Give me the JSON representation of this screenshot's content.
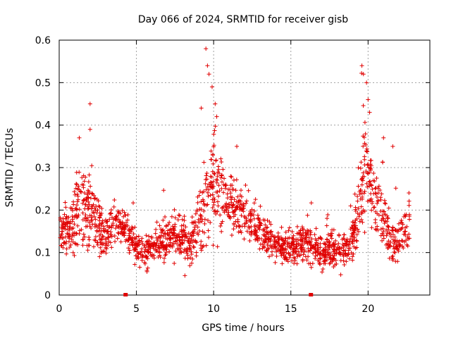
{
  "chart_data": {
    "type": "scatter",
    "title": "Day 066 of 2024, SRMTID for receiver gisb",
    "xlabel": "GPS time / hours",
    "ylabel": "SRMTID / TECUs",
    "xlim": [
      0,
      24
    ],
    "ylim": [
      0,
      0.6
    ],
    "xticks": [
      0,
      5,
      10,
      15,
      20
    ],
    "xtick_labels": [
      "0",
      "5",
      "10",
      "15",
      "20"
    ],
    "yticks": [
      0,
      0.1,
      0.2,
      0.3,
      0.4,
      0.5,
      0.6
    ],
    "ytick_labels": [
      "0",
      "0.1",
      "0.2",
      "0.3",
      "0.4",
      "0.5",
      "0.6"
    ],
    "grid": true,
    "marker": "+",
    "color": "#e00000",
    "note": "Dense scatter of several thousand samples; values listed are a representative approximation of the plotted profile.",
    "envelope": {
      "x": [
        0,
        0.5,
        1,
        1.3,
        1.6,
        2,
        2.3,
        2.7,
        3,
        3.3,
        3.6,
        4,
        4.5,
        5,
        5.5,
        6,
        6.5,
        7,
        7.5,
        8,
        8.5,
        9,
        9.3,
        9.6,
        10,
        10.3,
        10.6,
        11,
        11.5,
        12,
        12.5,
        13,
        13.5,
        14,
        14.5,
        15,
        15.5,
        16,
        16.5,
        17,
        17.5,
        18,
        18.5,
        19,
        19.3,
        19.6,
        19.8,
        20,
        20.3,
        20.6,
        21,
        21.5,
        22,
        22.5,
        22.7
      ],
      "mean": [
        0.14,
        0.15,
        0.17,
        0.22,
        0.19,
        0.2,
        0.18,
        0.16,
        0.14,
        0.15,
        0.17,
        0.16,
        0.15,
        0.11,
        0.1,
        0.11,
        0.12,
        0.13,
        0.14,
        0.13,
        0.12,
        0.16,
        0.19,
        0.24,
        0.26,
        0.24,
        0.22,
        0.21,
        0.2,
        0.19,
        0.17,
        0.15,
        0.13,
        0.12,
        0.11,
        0.11,
        0.12,
        0.12,
        0.11,
        0.1,
        0.11,
        0.11,
        0.1,
        0.12,
        0.18,
        0.27,
        0.3,
        0.3,
        0.24,
        0.19,
        0.18,
        0.13,
        0.13,
        0.15,
        0.18
      ],
      "spread": [
        0.04,
        0.05,
        0.07,
        0.1,
        0.08,
        0.09,
        0.07,
        0.05,
        0.05,
        0.05,
        0.05,
        0.04,
        0.04,
        0.04,
        0.04,
        0.04,
        0.04,
        0.05,
        0.05,
        0.05,
        0.06,
        0.07,
        0.1,
        0.12,
        0.12,
        0.1,
        0.08,
        0.07,
        0.06,
        0.05,
        0.05,
        0.04,
        0.04,
        0.04,
        0.04,
        0.04,
        0.04,
        0.04,
        0.04,
        0.04,
        0.04,
        0.04,
        0.04,
        0.05,
        0.08,
        0.12,
        0.13,
        0.12,
        0.09,
        0.07,
        0.06,
        0.05,
        0.05,
        0.05,
        0.06
      ]
    },
    "peaks": [
      {
        "x": 1.3,
        "y": 0.37
      },
      {
        "x": 2.0,
        "y": 0.45
      },
      {
        "x": 2.0,
        "y": 0.39
      },
      {
        "x": 9.2,
        "y": 0.44
      },
      {
        "x": 9.5,
        "y": 0.58
      },
      {
        "x": 9.6,
        "y": 0.54
      },
      {
        "x": 9.7,
        "y": 0.52
      },
      {
        "x": 9.9,
        "y": 0.49
      },
      {
        "x": 10.1,
        "y": 0.45
      },
      {
        "x": 10.2,
        "y": 0.42
      },
      {
        "x": 11.5,
        "y": 0.35
      },
      {
        "x": 19.6,
        "y": 0.54
      },
      {
        "x": 19.7,
        "y": 0.52
      },
      {
        "x": 19.9,
        "y": 0.5
      },
      {
        "x": 20.0,
        "y": 0.46
      },
      {
        "x": 20.1,
        "y": 0.43
      },
      {
        "x": 21.0,
        "y": 0.37
      },
      {
        "x": 21.6,
        "y": 0.35
      }
    ],
    "gap_markers": [
      {
        "x": 4.3,
        "y": 0
      },
      {
        "x": 16.3,
        "y": 0
      }
    ]
  }
}
